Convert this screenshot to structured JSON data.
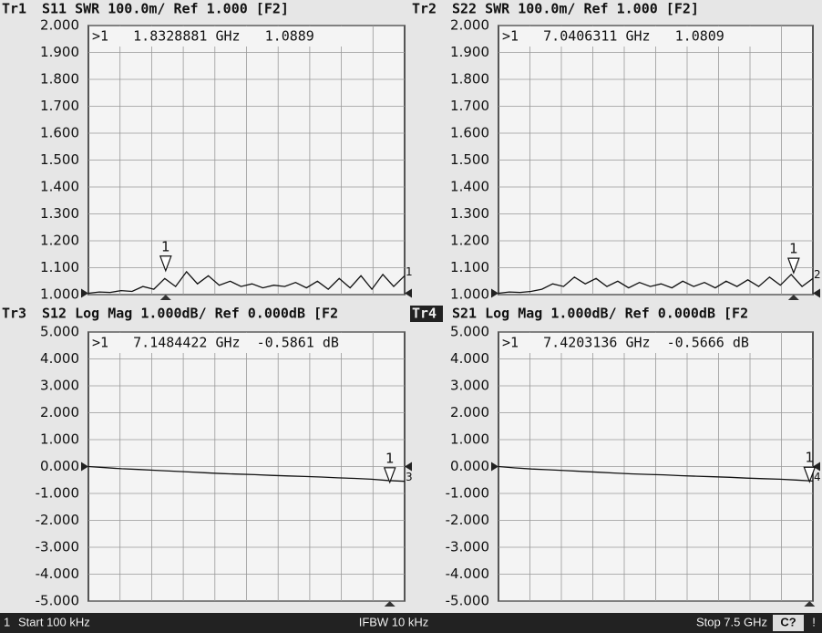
{
  "chart_data": [
    {
      "type": "line",
      "trace": "Tr1",
      "header": "S11 SWR 100.0m/ Ref 1.000 [F2]",
      "trace_number": "1",
      "marker": {
        "label": "1",
        "readout": ">1   1.8328881 GHz   1.0889",
        "frequency": 1.8328881,
        "value": 1.0889
      },
      "xlim": [
        0.0001,
        7.5
      ],
      "ylim": [
        1,
        2
      ],
      "yticks": [
        {
          "value": 1,
          "label": "1.000"
        },
        {
          "value": 1.1,
          "label": "1.100"
        },
        {
          "value": 1.2,
          "label": "1.200"
        },
        {
          "value": 1.3,
          "label": "1.300"
        },
        {
          "value": 1.4,
          "label": "1.400"
        },
        {
          "value": 1.5,
          "label": "1.500"
        },
        {
          "value": 1.6,
          "label": "1.600"
        },
        {
          "value": 1.7,
          "label": "1.700"
        },
        {
          "value": 1.8,
          "label": "1.800"
        },
        {
          "value": 1.9,
          "label": "1.900"
        },
        {
          "value": 2,
          "label": "2.000"
        }
      ],
      "grid": true,
      "color": "#111111",
      "values": [
        1.005,
        1.01,
        1.008,
        1.015,
        1.012,
        1.03,
        1.02,
        1.06,
        1.03,
        1.085,
        1.04,
        1.07,
        1.035,
        1.05,
        1.03,
        1.04,
        1.025,
        1.035,
        1.03,
        1.045,
        1.025,
        1.05,
        1.02,
        1.06,
        1.025,
        1.07,
        1.02,
        1.075,
        1.03,
        1.07
      ]
    },
    {
      "type": "line",
      "trace": "Tr2",
      "header": "S22 SWR 100.0m/ Ref 1.000 [F2]",
      "trace_number": "2",
      "marker": {
        "label": "1",
        "readout": ">1   7.0406311 GHz   1.0809",
        "frequency": 7.0406311,
        "value": 1.0809
      },
      "xlim": [
        0.0001,
        7.5
      ],
      "ylim": [
        1,
        2
      ],
      "yticks": [
        {
          "value": 1,
          "label": "1.000"
        },
        {
          "value": 1.1,
          "label": "1.100"
        },
        {
          "value": 1.2,
          "label": "1.200"
        },
        {
          "value": 1.3,
          "label": "1.300"
        },
        {
          "value": 1.4,
          "label": "1.400"
        },
        {
          "value": 1.5,
          "label": "1.500"
        },
        {
          "value": 1.6,
          "label": "1.600"
        },
        {
          "value": 1.7,
          "label": "1.700"
        },
        {
          "value": 1.8,
          "label": "1.800"
        },
        {
          "value": 1.9,
          "label": "1.900"
        },
        {
          "value": 2,
          "label": "2.000"
        }
      ],
      "grid": true,
      "color": "#111111",
      "values": [
        1.005,
        1.01,
        1.008,
        1.012,
        1.02,
        1.04,
        1.03,
        1.065,
        1.04,
        1.06,
        1.03,
        1.05,
        1.025,
        1.045,
        1.03,
        1.04,
        1.025,
        1.05,
        1.03,
        1.045,
        1.025,
        1.05,
        1.03,
        1.055,
        1.03,
        1.065,
        1.035,
        1.075,
        1.03,
        1.06
      ]
    },
    {
      "type": "line",
      "trace": "Tr3",
      "header": "S12 Log Mag 1.000dB/ Ref 0.000dB [F2",
      "trace_number": "3",
      "marker": {
        "label": "1",
        "readout": ">1   7.1484422 GHz  -0.5861 dB",
        "frequency": 7.1484422,
        "value": -0.5861
      },
      "xlim": [
        0.0001,
        7.5
      ],
      "ylim": [
        -5,
        5
      ],
      "yticks": [
        {
          "value": -5,
          "label": "-5.000"
        },
        {
          "value": -4,
          "label": "-4.000"
        },
        {
          "value": -3,
          "label": "-3.000"
        },
        {
          "value": -2,
          "label": "-2.000"
        },
        {
          "value": -1,
          "label": "-1.000"
        },
        {
          "value": 0,
          "label": "0.000"
        },
        {
          "value": 1,
          "label": "1.000"
        },
        {
          "value": 2,
          "label": "2.000"
        },
        {
          "value": 3,
          "label": "3.000"
        },
        {
          "value": 4,
          "label": "4.000"
        },
        {
          "value": 5,
          "label": "5.000"
        }
      ],
      "grid": true,
      "color": "#111111",
      "values": [
        0,
        -0.04,
        -0.08,
        -0.11,
        -0.14,
        -0.17,
        -0.2,
        -0.23,
        -0.26,
        -0.28,
        -0.3,
        -0.33,
        -0.35,
        -0.37,
        -0.39,
        -0.42,
        -0.44,
        -0.47,
        -0.52,
        -0.55
      ]
    },
    {
      "type": "line",
      "trace": "Tr4",
      "header": "S21 Log Mag 1.000dB/ Ref 0.000dB [F2",
      "trace_number": "4",
      "active": true,
      "marker": {
        "label": "1",
        "readout": ">1   7.4203136 GHz  -0.5666 dB",
        "frequency": 7.4203136,
        "value": -0.5666
      },
      "xlim": [
        0.0001,
        7.5
      ],
      "ylim": [
        -5,
        5
      ],
      "yticks": [
        {
          "value": -5,
          "label": "-5.000"
        },
        {
          "value": -4,
          "label": "-4.000"
        },
        {
          "value": -3,
          "label": "-3.000"
        },
        {
          "value": -2,
          "label": "-2.000"
        },
        {
          "value": -1,
          "label": "-1.000"
        },
        {
          "value": 0,
          "label": "0.000"
        },
        {
          "value": 1,
          "label": "1.000"
        },
        {
          "value": 2,
          "label": "2.000"
        },
        {
          "value": 3,
          "label": "3.000"
        },
        {
          "value": 4,
          "label": "4.000"
        },
        {
          "value": 5,
          "label": "5.000"
        }
      ],
      "grid": true,
      "color": "#111111",
      "values": [
        0,
        -0.05,
        -0.09,
        -0.12,
        -0.15,
        -0.18,
        -0.21,
        -0.24,
        -0.27,
        -0.29,
        -0.31,
        -0.34,
        -0.36,
        -0.38,
        -0.4,
        -0.43,
        -0.45,
        -0.47,
        -0.5,
        -0.54
      ]
    }
  ],
  "footer": {
    "channel": "1",
    "start": "Start 100 kHz",
    "ifbw": "IFBW 10 kHz",
    "stop": "Stop 7.5 GHz",
    "status": "C?",
    "alert": "!"
  }
}
